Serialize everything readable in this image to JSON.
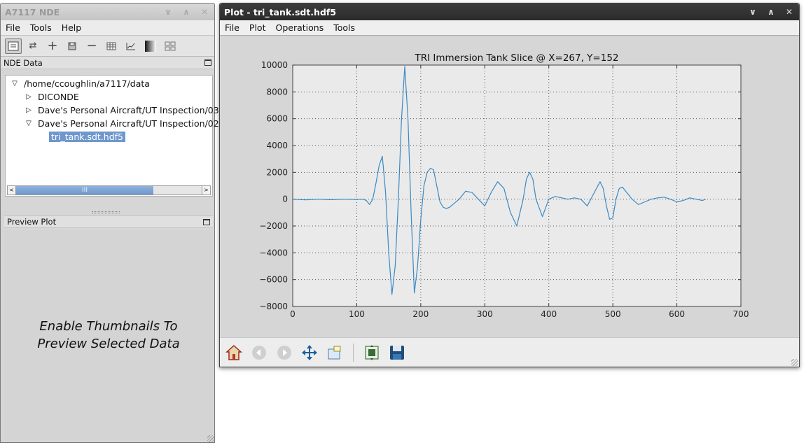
{
  "left_window": {
    "title": "A7117 NDE",
    "menu": [
      "File",
      "Tools",
      "Help"
    ],
    "toolbar_icons": [
      "data-view-icon",
      "refresh-icon",
      "add-icon",
      "save-icon",
      "remove-icon",
      "table-icon",
      "plot-icon",
      "image-icon",
      "megaplot-icon"
    ],
    "nde_data_header": "NDE Data",
    "tree": {
      "root": "/home/ccoughlin/a7117/data",
      "items": [
        {
          "label": "DICONDE",
          "expanded": false
        },
        {
          "label": "Dave's Personal Aircraft/UT Inspection/03",
          "expanded": false
        },
        {
          "label": "Dave's Personal Aircraft/UT Inspection/02",
          "expanded": true
        }
      ],
      "selected_file": "tri_tank.sdt.hdf5"
    },
    "scroll_thumb_label": "III",
    "preview_header": "Preview Plot",
    "preview_message_line1": "Enable Thumbnails To",
    "preview_message_line2": "Preview Selected Data"
  },
  "plot_window": {
    "title": "Plot - tri_tank.sdt.hdf5",
    "menu": [
      "File",
      "Plot",
      "Operations",
      "Tools"
    ],
    "nav_icons": [
      "home-icon",
      "back-icon",
      "forward-icon",
      "pan-icon",
      "zoom-icon",
      "subplots-icon",
      "save-figure-icon"
    ],
    "colors": {
      "line": "#3a8ac4",
      "axes_bg": "#eaeaea"
    }
  },
  "chart_data": {
    "type": "line",
    "title": "TRI Immersion Tank Slice @ X=267, Y=152",
    "xlabel": "",
    "ylabel": "",
    "xlim": [
      0,
      700
    ],
    "ylim": [
      -8000,
      10000
    ],
    "xticks": [
      0,
      100,
      200,
      300,
      400,
      500,
      600,
      700
    ],
    "yticks": [
      -8000,
      -6000,
      -4000,
      -2000,
      0,
      2000,
      4000,
      6000,
      8000,
      10000
    ],
    "grid": true,
    "series": [
      {
        "x": [
          0,
          20,
          40,
          60,
          80,
          100,
          110,
          115,
          120,
          125,
          130,
          135,
          140,
          145,
          150,
          155,
          160,
          165,
          170,
          175,
          180,
          185,
          190,
          195,
          200,
          205,
          210,
          215,
          220,
          225,
          230,
          235,
          240,
          245,
          250,
          260,
          270,
          280,
          290,
          300,
          310,
          320,
          330,
          340,
          350,
          360,
          365,
          370,
          375,
          380,
          390,
          400,
          410,
          420,
          430,
          440,
          450,
          460,
          470,
          480,
          485,
          490,
          495,
          500,
          505,
          510,
          515,
          520,
          525,
          530,
          540,
          550,
          560,
          570,
          580,
          590,
          600,
          610,
          620,
          630,
          640,
          645
        ],
        "y": [
          0,
          -50,
          0,
          -40,
          0,
          -30,
          0,
          -100,
          -400,
          0,
          1200,
          2500,
          3200,
          500,
          -4000,
          -7100,
          -5000,
          0,
          6000,
          9900,
          6000,
          -1000,
          -7000,
          -5000,
          -1500,
          1000,
          2000,
          2300,
          2200,
          1000,
          -200,
          -600,
          -700,
          -600,
          -400,
          0,
          600,
          500,
          0,
          -500,
          500,
          1300,
          800,
          -1000,
          -2000,
          0,
          1500,
          2000,
          1500,
          0,
          -1300,
          0,
          200,
          100,
          0,
          100,
          0,
          -500,
          400,
          1300,
          800,
          -500,
          -1500,
          -1400,
          0,
          800,
          900,
          600,
          300,
          0,
          -400,
          -200,
          0,
          100,
          150,
          0,
          -200,
          -100,
          100,
          0,
          -100,
          0
        ]
      }
    ]
  }
}
